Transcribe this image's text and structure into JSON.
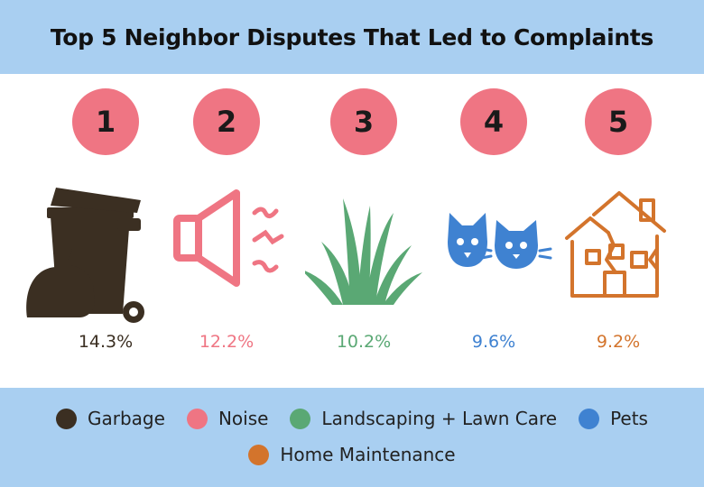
{
  "chart_data": {
    "type": "pictogram",
    "title": "Top 5 Neighbor Disputes That Led to Complaints",
    "categories": [
      "Garbage",
      "Noise",
      "Landscaping + Lawn Care",
      "Pets",
      "Home Maintenance"
    ],
    "ranks": [
      "1",
      "2",
      "3",
      "4",
      "5"
    ],
    "values": [
      14.3,
      12.2,
      10.2,
      9.6,
      9.2
    ],
    "value_labels": [
      "14.3%",
      "12.2%",
      "10.2%",
      "9.6%",
      "9.2%"
    ],
    "colors": [
      "#3b2f22",
      "#ef7583",
      "#5aa874",
      "#3f82d1",
      "#d3742c"
    ],
    "icons": [
      "garbage-bin-icon",
      "speaker-noise-icon",
      "grass-icon",
      "cat-dog-icon",
      "broken-house-icon"
    ],
    "legend_position": "bottom"
  },
  "colors": {
    "header_background": "#a9cff1",
    "badge": "#ef7583",
    "legend_background": "#a9cff1"
  }
}
